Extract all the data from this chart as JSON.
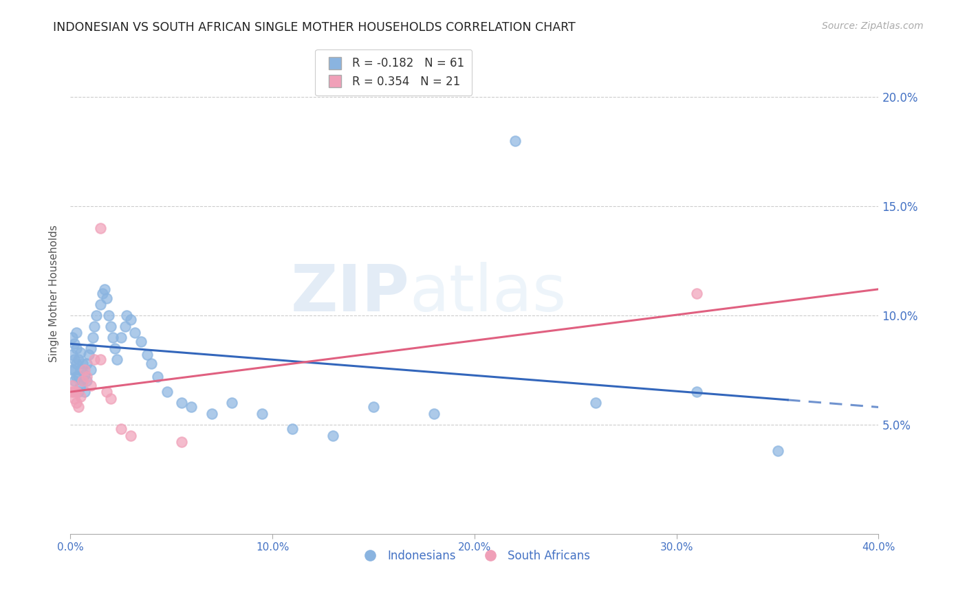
{
  "title": "INDONESIAN VS SOUTH AFRICAN SINGLE MOTHER HOUSEHOLDS CORRELATION CHART",
  "source": "Source: ZipAtlas.com",
  "ylabel": "Single Mother Households",
  "xlim": [
    0.0,
    0.4
  ],
  "ylim": [
    0.0,
    0.22
  ],
  "yticks": [
    0.05,
    0.1,
    0.15,
    0.2
  ],
  "ytick_labels": [
    "5.0%",
    "10.0%",
    "15.0%",
    "20.0%"
  ],
  "xticks": [
    0.0,
    0.1,
    0.2,
    0.3,
    0.4
  ],
  "xtick_labels": [
    "0.0%",
    "10.0%",
    "20.0%",
    "30.0%",
    "40.0%"
  ],
  "indonesian_color": "#8ab4e0",
  "south_african_color": "#f0a0b8",
  "indonesian_line_color": "#3366bb",
  "south_african_line_color": "#e06080",
  "indonesian_r": -0.182,
  "indonesian_n": 61,
  "south_african_r": 0.354,
  "south_african_n": 21,
  "watermark_zip": "ZIP",
  "watermark_atlas": "atlas",
  "indo_line_x0": 0.0,
  "indo_line_y0": 0.087,
  "indo_line_x1": 0.4,
  "indo_line_y1": 0.058,
  "sa_line_x0": 0.0,
  "sa_line_y0": 0.065,
  "sa_line_x1": 0.4,
  "sa_line_y1": 0.112,
  "indonesian_x": [
    0.001,
    0.001,
    0.001,
    0.002,
    0.002,
    0.002,
    0.002,
    0.003,
    0.003,
    0.003,
    0.003,
    0.004,
    0.004,
    0.004,
    0.005,
    0.005,
    0.005,
    0.006,
    0.006,
    0.007,
    0.007,
    0.008,
    0.008,
    0.009,
    0.01,
    0.01,
    0.011,
    0.012,
    0.013,
    0.015,
    0.016,
    0.017,
    0.018,
    0.019,
    0.02,
    0.021,
    0.022,
    0.023,
    0.025,
    0.027,
    0.028,
    0.03,
    0.032,
    0.035,
    0.038,
    0.04,
    0.043,
    0.048,
    0.055,
    0.06,
    0.07,
    0.08,
    0.095,
    0.11,
    0.13,
    0.15,
    0.18,
    0.22,
    0.26,
    0.31,
    0.35
  ],
  "indonesian_y": [
    0.075,
    0.082,
    0.09,
    0.07,
    0.075,
    0.08,
    0.087,
    0.072,
    0.078,
    0.085,
    0.092,
    0.065,
    0.072,
    0.08,
    0.068,
    0.075,
    0.083,
    0.07,
    0.078,
    0.065,
    0.073,
    0.07,
    0.078,
    0.082,
    0.075,
    0.085,
    0.09,
    0.095,
    0.1,
    0.105,
    0.11,
    0.112,
    0.108,
    0.1,
    0.095,
    0.09,
    0.085,
    0.08,
    0.09,
    0.095,
    0.1,
    0.098,
    0.092,
    0.088,
    0.082,
    0.078,
    0.072,
    0.065,
    0.06,
    0.058,
    0.055,
    0.06,
    0.055,
    0.048,
    0.045,
    0.058,
    0.055,
    0.18,
    0.06,
    0.065,
    0.038
  ],
  "south_african_x": [
    0.001,
    0.001,
    0.002,
    0.002,
    0.003,
    0.003,
    0.004,
    0.005,
    0.006,
    0.007,
    0.008,
    0.01,
    0.012,
    0.015,
    0.018,
    0.02,
    0.025,
    0.03,
    0.055,
    0.31,
    0.015
  ],
  "south_african_y": [
    0.065,
    0.068,
    0.062,
    0.065,
    0.06,
    0.065,
    0.058,
    0.063,
    0.07,
    0.075,
    0.072,
    0.068,
    0.08,
    0.08,
    0.065,
    0.062,
    0.048,
    0.045,
    0.042,
    0.11,
    0.14
  ]
}
